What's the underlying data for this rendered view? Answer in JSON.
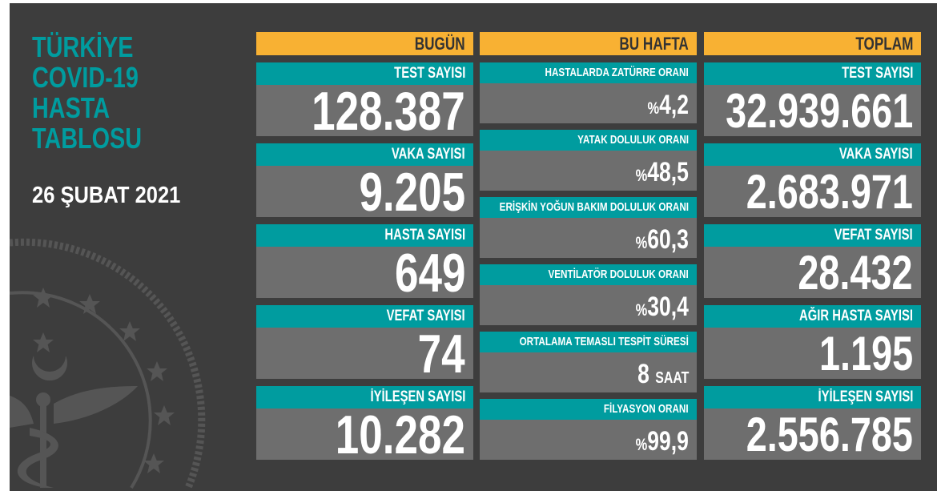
{
  "title": "TÜRKİYE\nCOVID-19\nHASTA\nTABLOSU",
  "date": "26 ŞUBAT 2021",
  "colors": {
    "accent": "#f8b133",
    "teal": "#009c9f",
    "value_bg": "#6e6e6e",
    "background": "#3d3d3d"
  },
  "columns": [
    {
      "header": "BUGÜN",
      "items": [
        {
          "label": "TEST SAYISI",
          "value": "128.387"
        },
        {
          "label": "VAKA SAYISI",
          "value": "9.205"
        },
        {
          "label": "HASTA SAYISI",
          "value": "649"
        },
        {
          "label": "VEFAT SAYISI",
          "value": "74"
        },
        {
          "label": "İYİLEŞEN SAYISI",
          "value": "10.282"
        }
      ]
    },
    {
      "header": "BU HAFTA",
      "items": [
        {
          "label": "HASTALARDA ZATÜRRE ORANI",
          "prefix": "%",
          "value": "4,2"
        },
        {
          "label": "YATAK DOLULUK ORANI",
          "prefix": "%",
          "value": "48,5"
        },
        {
          "label": "ERİŞKİN YOĞUN BAKIM DOLULUK ORANI",
          "prefix": "%",
          "value": "60,3"
        },
        {
          "label": "VENTİLATÖR DOLULUK ORANI",
          "prefix": "%",
          "value": "30,4"
        },
        {
          "label": "ORTALAMA TEMASLI TESPİT SÜRESİ",
          "value": "8",
          "unit": "SAAT"
        },
        {
          "label": "FİLYASYON ORANI",
          "prefix": "%",
          "value": "99,9"
        }
      ]
    },
    {
      "header": "TOPLAM",
      "items": [
        {
          "label": "TEST SAYISI",
          "value": "32.939.661"
        },
        {
          "label": "VAKA SAYISI",
          "value": "2.683.971"
        },
        {
          "label": "VEFAT SAYISI",
          "value": "28.432"
        },
        {
          "label": "AĞIR HASTA SAYISI",
          "value": "1.195"
        },
        {
          "label": "İYİLEŞEN SAYISI",
          "value": "2.556.785"
        }
      ]
    }
  ]
}
